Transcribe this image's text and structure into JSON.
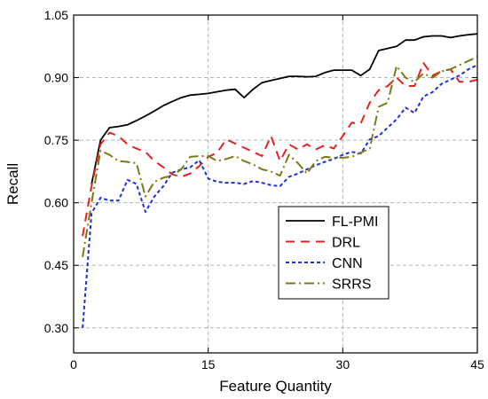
{
  "chart_data": {
    "type": "line",
    "xlabel": "Feature Quantity",
    "ylabel": "Recall",
    "xlim": [
      0,
      45
    ],
    "ylim": [
      0.24,
      1.05
    ],
    "x_ticks": [
      0,
      15,
      30,
      45
    ],
    "x_tick_labels": [
      "0",
      "15",
      "30",
      "45"
    ],
    "y_ticks": [
      0.3,
      0.45,
      0.6,
      0.75,
      0.9,
      1.05
    ],
    "y_tick_labels": [
      "0.30",
      "0.45",
      "0.60",
      "0.75",
      "0.90",
      "1.05"
    ],
    "grid": true,
    "legend_position": "center-right",
    "series": [
      {
        "name": "FL-PMI",
        "color": "#000000",
        "dash": "solid",
        "x": [
          2,
          3,
          4,
          5,
          6,
          7,
          8,
          9,
          10,
          11,
          12,
          13,
          14,
          15,
          16,
          17,
          18,
          19,
          20,
          21,
          22,
          23,
          24,
          25,
          26,
          27,
          28,
          29,
          30,
          31,
          32,
          33,
          34,
          35,
          36,
          37,
          38,
          39,
          40,
          41,
          42,
          43,
          44,
          45
        ],
        "y": [
          0.645,
          0.75,
          0.78,
          0.783,
          0.787,
          0.797,
          0.808,
          0.82,
          0.833,
          0.843,
          0.852,
          0.858,
          0.86,
          0.862,
          0.866,
          0.87,
          0.872,
          0.852,
          0.872,
          0.888,
          0.893,
          0.898,
          0.903,
          0.903,
          0.902,
          0.903,
          0.912,
          0.918,
          0.918,
          0.918,
          0.905,
          0.92,
          0.965,
          0.97,
          0.975,
          0.99,
          0.99,
          0.998,
          1.0,
          1.0,
          0.996,
          1.0,
          1.003,
          1.005
        ]
      },
      {
        "name": "DRL",
        "color": "#e8201c",
        "dash": "10,7",
        "x": [
          1,
          2,
          3,
          4,
          5,
          6,
          7,
          8,
          9,
          10,
          11,
          12,
          13,
          14,
          15,
          16,
          17,
          18,
          19,
          20,
          21,
          22,
          23,
          24,
          25,
          26,
          27,
          28,
          29,
          30,
          31,
          32,
          33,
          34,
          35,
          36,
          37,
          38,
          39,
          40,
          41,
          42,
          43,
          44,
          45
        ],
        "y": [
          0.52,
          0.64,
          0.74,
          0.768,
          0.76,
          0.74,
          0.73,
          0.722,
          0.7,
          0.685,
          0.668,
          0.662,
          0.67,
          0.688,
          0.71,
          0.72,
          0.752,
          0.742,
          0.732,
          0.722,
          0.712,
          0.76,
          0.7,
          0.74,
          0.728,
          0.74,
          0.728,
          0.738,
          0.73,
          0.76,
          0.792,
          0.79,
          0.84,
          0.87,
          0.88,
          0.9,
          0.88,
          0.88,
          0.935,
          0.905,
          0.915,
          0.92,
          0.89,
          0.89,
          0.895
        ]
      },
      {
        "name": "CNN",
        "color": "#1f2fd6",
        "dash": "4,3",
        "x": [
          1,
          2,
          3,
          4,
          5,
          6,
          7,
          8,
          9,
          10,
          11,
          12,
          13,
          14,
          15,
          16,
          17,
          18,
          19,
          20,
          21,
          22,
          23,
          24,
          25,
          26,
          27,
          28,
          29,
          30,
          31,
          32,
          33,
          34,
          35,
          36,
          37,
          38,
          39,
          40,
          41,
          42,
          43,
          44,
          45
        ],
        "y": [
          0.3,
          0.575,
          0.612,
          0.605,
          0.605,
          0.655,
          0.645,
          0.578,
          0.615,
          0.64,
          0.672,
          0.68,
          0.685,
          0.702,
          0.658,
          0.65,
          0.648,
          0.648,
          0.645,
          0.652,
          0.648,
          0.642,
          0.64,
          0.662,
          0.67,
          0.68,
          0.69,
          0.698,
          0.705,
          0.715,
          0.722,
          0.718,
          0.752,
          0.76,
          0.78,
          0.8,
          0.828,
          0.815,
          0.855,
          0.865,
          0.885,
          0.895,
          0.905,
          0.92,
          0.93
        ]
      },
      {
        "name": "SRRS",
        "color": "#7a7a14",
        "dash": "11,4,2,4",
        "x": [
          1,
          2,
          3,
          4,
          5,
          6,
          7,
          8,
          9,
          10,
          11,
          12,
          13,
          14,
          15,
          16,
          17,
          18,
          19,
          20,
          21,
          22,
          23,
          24,
          25,
          26,
          27,
          28,
          29,
          30,
          31,
          32,
          33,
          34,
          35,
          36,
          37,
          38,
          39,
          40,
          41,
          42,
          43,
          44,
          45
        ],
        "y": [
          0.47,
          0.6,
          0.725,
          0.715,
          0.7,
          0.698,
          0.695,
          0.615,
          0.65,
          0.66,
          0.665,
          0.68,
          0.71,
          0.712,
          0.712,
          0.7,
          0.705,
          0.712,
          0.7,
          0.692,
          0.68,
          0.675,
          0.665,
          0.715,
          0.695,
          0.67,
          0.7,
          0.71,
          0.708,
          0.708,
          0.71,
          0.72,
          0.73,
          0.83,
          0.84,
          0.928,
          0.9,
          0.89,
          0.91,
          0.9,
          0.915,
          0.92,
          0.93,
          0.94,
          0.95
        ]
      }
    ]
  }
}
